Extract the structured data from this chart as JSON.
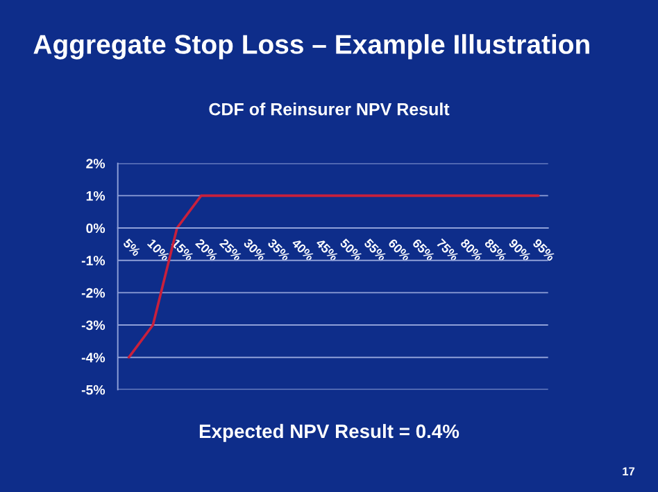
{
  "chart_data": {
    "type": "line",
    "title": "Aggregate Stop Loss – Example Illustration",
    "subtitle": "CDF of Reinsurer NPV Result",
    "categories": [
      "5%",
      "10%",
      "15%",
      "20%",
      "25%",
      "30%",
      "35%",
      "40%",
      "45%",
      "50%",
      "55%",
      "60%",
      "65%",
      "75%",
      "80%",
      "85%",
      "90%",
      "95%"
    ],
    "series": [
      {
        "color": "#c8203c",
        "values": [
          -4,
          -3,
          0,
          1,
          1,
          1,
          1,
          1,
          1,
          1,
          1,
          1,
          1,
          1,
          1,
          1,
          1,
          1
        ]
      }
    ],
    "ylim": [
      -5,
      2
    ],
    "yticks": [
      {
        "value": -5,
        "label": "-5%"
      },
      {
        "value": -4,
        "label": "-4%"
      },
      {
        "value": -3,
        "label": "-3%"
      },
      {
        "value": -2,
        "label": "-2%"
      },
      {
        "value": -1,
        "label": "-1%"
      },
      {
        "value": 0,
        "label": "0%"
      },
      {
        "value": 1,
        "label": "1%"
      },
      {
        "value": 2,
        "label": "2%"
      }
    ],
    "grid": "y",
    "legend": false,
    "marker": "none",
    "line_style": "solid",
    "annotations": [
      "Expected NPV Result = 0.4%",
      "17"
    ]
  }
}
